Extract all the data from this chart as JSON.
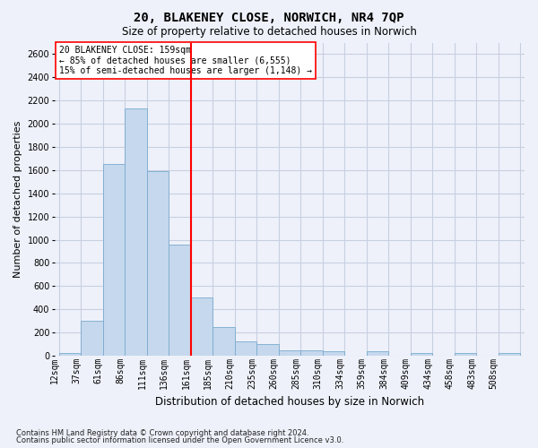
{
  "title": "20, BLAKENEY CLOSE, NORWICH, NR4 7QP",
  "subtitle": "Size of property relative to detached houses in Norwich",
  "xlabel": "Distribution of detached houses by size in Norwich",
  "ylabel": "Number of detached properties",
  "footnote1": "Contains HM Land Registry data © Crown copyright and database right 2024.",
  "footnote2": "Contains public sector information licensed under the Open Government Licence v3.0.",
  "annotation_line1": "20 BLAKENEY CLOSE: 159sqm",
  "annotation_line2": "← 85% of detached houses are smaller (6,555)",
  "annotation_line3": "15% of semi-detached houses are larger (1,148) →",
  "bar_color": "#c5d8ed",
  "bar_edgecolor": "#7aaacf",
  "vline_color": "red",
  "annotation_box_edgecolor": "red",
  "annotation_box_facecolor": "white",
  "grid_color": "#c8cfe0",
  "background_color": "#eef1fa",
  "tick_labels": [
    "12sqm",
    "37sqm",
    "61sqm",
    "86sqm",
    "111sqm",
    "136sqm",
    "161sqm",
    "185sqm",
    "210sqm",
    "235sqm",
    "260sqm",
    "285sqm",
    "310sqm",
    "334sqm",
    "359sqm",
    "384sqm",
    "409sqm",
    "434sqm",
    "458sqm",
    "483sqm",
    "508sqm"
  ],
  "values": [
    25,
    300,
    1650,
    2130,
    1590,
    960,
    500,
    250,
    120,
    100,
    50,
    50,
    35,
    0,
    35,
    0,
    20,
    0,
    20,
    0,
    25
  ],
  "vline_x_index": 6,
  "ylim": [
    0,
    2700
  ],
  "yticks": [
    0,
    200,
    400,
    600,
    800,
    1000,
    1200,
    1400,
    1600,
    1800,
    2000,
    2200,
    2400,
    2600
  ],
  "title_fontsize": 10,
  "subtitle_fontsize": 8.5,
  "ylabel_fontsize": 8,
  "xlabel_fontsize": 8.5,
  "tick_fontsize": 7,
  "annotation_fontsize": 7,
  "footnote_fontsize": 6
}
